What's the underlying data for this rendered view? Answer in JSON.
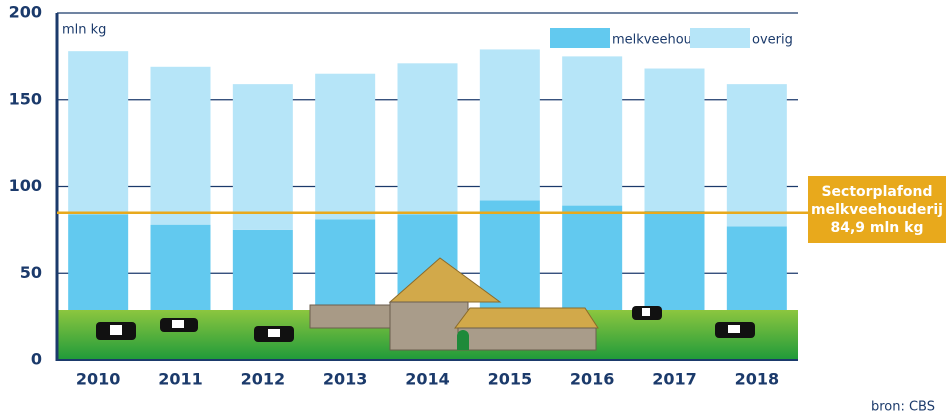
{
  "chart_data": {
    "type": "stacked-bar",
    "y_label": "mln kg",
    "source": "bron: CBS",
    "categories": [
      "2010",
      "2011",
      "2012",
      "2013",
      "2014",
      "2015",
      "2016",
      "2017",
      "2018"
    ],
    "series": [
      {
        "name": "melkveehouderij",
        "color": "#62c9ef",
        "values": [
          84,
          78,
          75,
          81,
          84,
          92,
          89,
          86,
          77
        ]
      },
      {
        "name": "overig",
        "color": "#b6e5f8",
        "values": [
          94,
          91,
          84,
          84,
          87,
          87,
          86,
          82,
          82
        ]
      }
    ],
    "ylim": [
      0,
      200
    ],
    "yticks": [
      0,
      50,
      100,
      150,
      200
    ],
    "grid": true,
    "threshold": {
      "value": 84.9,
      "color": "#e8a91c",
      "label_lines": [
        "Sectorplafond",
        "melkveehouderij",
        "84,9 mln kg"
      ]
    }
  }
}
